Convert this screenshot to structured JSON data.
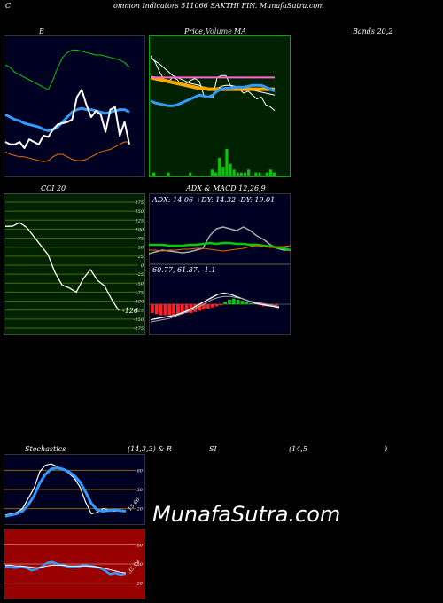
{
  "header": {
    "left": "C",
    "title": "ommon  Indicators 511066  SAKTHI FIN. MunafaSutra.com"
  },
  "panel_labels": {
    "bollinger_left": "B",
    "price_ma": "Price,",
    "price_ma_overlap": "Volume",
    "ma": "MA",
    "bands": "Bands 20,2",
    "cci": "CCI 20",
    "adx_macd": "ADX  & MACD 12,26,9",
    "stoch": "Stochastics",
    "stoch_params": "(14,3,3) & R",
    "si": "SI",
    "rsi_params": "(14,5",
    "rsi_close": ")"
  },
  "brand": "MunafaSutra.com",
  "colors": {
    "panel_navy": "#000022",
    "panel_green": "#002200",
    "panel_olive": "#002200",
    "panel_red": "#990000",
    "white": "#ffffff",
    "green": "#00cc00",
    "orange": "#e07000",
    "blue": "#3399ff",
    "yellow": "#ffaa00",
    "pink": "#ff66cc"
  },
  "chart_data": [
    {
      "id": "bollinger",
      "type": "line",
      "title": "Bollinger Bands 20,2",
      "ylim": [
        0,
        100
      ],
      "series": [
        {
          "name": "upper",
          "color": "#00cc00",
          "values": [
            82,
            80,
            76,
            74,
            72,
            70,
            68,
            66,
            64,
            62,
            70,
            80,
            88,
            92,
            94,
            94,
            93,
            92,
            91,
            90,
            90,
            89,
            88,
            87,
            86,
            84,
            80
          ]
        },
        {
          "name": "middle",
          "color": "#3399ff",
          "values": [
            42,
            40,
            38,
            37,
            35,
            34,
            33,
            32,
            30,
            29,
            30,
            32,
            36,
            40,
            44,
            46,
            47,
            46,
            46,
            45,
            44,
            43,
            44,
            45,
            46,
            46,
            44
          ]
        },
        {
          "name": "lower",
          "color": "#e07000",
          "values": [
            12,
            10,
            9,
            8,
            8,
            7,
            6,
            5,
            4,
            5,
            8,
            10,
            10,
            8,
            6,
            5,
            5,
            6,
            8,
            10,
            12,
            13,
            14,
            16,
            18,
            20,
            20
          ]
        },
        {
          "name": "price",
          "color": "#ffffff",
          "values": [
            20,
            18,
            18,
            20,
            15,
            22,
            20,
            18,
            25,
            24,
            30,
            34,
            35,
            36,
            38,
            56,
            62,
            50,
            40,
            45,
            42,
            28,
            46,
            48,
            25,
            36,
            18
          ]
        }
      ]
    },
    {
      "id": "price_ma",
      "type": "line",
      "title": "Price, Volume MA",
      "ylim": [
        0,
        100
      ],
      "series": [
        {
          "name": "price",
          "color": "#ffffff",
          "values": [
            88,
            82,
            72,
            64,
            62,
            66,
            64,
            58,
            60,
            63,
            65,
            62,
            48,
            46,
            45,
            66,
            68,
            68,
            58,
            53,
            54,
            50,
            52,
            48,
            44,
            46,
            38,
            36,
            32
          ]
        },
        {
          "name": "ma_fast",
          "color": "#ffffff",
          "values": [
            86,
            83,
            80,
            76,
            72,
            68,
            66,
            64,
            62,
            60,
            59,
            58,
            56,
            54,
            53,
            55,
            57,
            58,
            58,
            57,
            56,
            55,
            54,
            53,
            52,
            51,
            50,
            49,
            48
          ]
        },
        {
          "name": "ma_slow",
          "color": "#ffaa00",
          "values": [
            66,
            65,
            64,
            63,
            62,
            61,
            60,
            59,
            58,
            57,
            56,
            55,
            55,
            54,
            54,
            54,
            54,
            54,
            54,
            54,
            54,
            54,
            54,
            54,
            54,
            54,
            54,
            54,
            54
          ]
        },
        {
          "name": "ma_blue",
          "color": "#3399ff",
          "values": [
            42,
            40,
            39,
            38,
            37,
            37,
            38,
            40,
            42,
            44,
            46,
            48,
            47,
            46,
            48,
            52,
            54,
            55,
            55,
            56,
            56,
            56,
            57,
            58,
            58,
            58,
            56,
            54,
            52
          ]
        },
        {
          "name": "ma_pink",
          "color": "#ff66cc",
          "values": [
            66,
            66,
            66,
            66,
            66,
            66,
            66,
            66,
            66,
            66,
            66,
            66,
            66,
            66,
            66,
            66,
            66,
            66,
            66,
            66,
            66,
            66,
            66,
            66,
            66,
            66,
            66,
            66,
            66
          ]
        }
      ],
      "volume": [
        1,
        0,
        0,
        0,
        1,
        0,
        0,
        0,
        0,
        0,
        1,
        0,
        0,
        0,
        0,
        0,
        2,
        1,
        6,
        3,
        9,
        4,
        2,
        1,
        1,
        1,
        2,
        0,
        1,
        1,
        0,
        1,
        2,
        1
      ]
    },
    {
      "id": "cci",
      "type": "line",
      "title": "CCI 20",
      "ylim": [
        -175,
        175
      ],
      "yticks": [
        175,
        150,
        125,
        100,
        75,
        50,
        25,
        0,
        -25,
        -50,
        -75,
        -100,
        -125,
        -150,
        -175
      ],
      "values": [
        108,
        108,
        118,
        105,
        80,
        55,
        30,
        -20,
        -55,
        -63,
        -75,
        -38,
        -12,
        -42,
        -58,
        -95,
        -126
      ],
      "last_label": "-126"
    },
    {
      "id": "adx",
      "type": "line",
      "title": "ADX: 14.06  +DY: 14.32  -DY: 19.01",
      "ylim": [
        0,
        60
      ],
      "series": [
        {
          "name": "adx",
          "color": "#aaaaaa",
          "values": [
            10,
            12,
            14,
            13,
            12,
            11,
            12,
            14,
            16,
            30,
            38,
            40,
            38,
            36,
            40,
            36,
            30,
            26,
            20,
            16,
            14,
            14
          ]
        },
        {
          "name": "+DI",
          "color": "#00cc00",
          "values": [
            20,
            20,
            20,
            19,
            19,
            19,
            20,
            20,
            21,
            22,
            21,
            22,
            22,
            21,
            21,
            20,
            20,
            19,
            18,
            17,
            16,
            14
          ]
        },
        {
          "name": "-DI",
          "color": "#e07000",
          "values": [
            14,
            14,
            13,
            14,
            14,
            15,
            15,
            16,
            16,
            15,
            14,
            13,
            14,
            15,
            16,
            18,
            19,
            18,
            17,
            18,
            18,
            19
          ]
        }
      ]
    },
    {
      "id": "macd",
      "type": "bar",
      "title": "60.77,  61.87,  -1.1",
      "ylim": [
        -20,
        20
      ],
      "histogram": [
        -8,
        -9,
        -10,
        -10,
        -10,
        -10,
        -9,
        -9,
        -8,
        -8,
        -7,
        -6,
        -5,
        -4,
        -3,
        -2,
        -1,
        2,
        4,
        5,
        4,
        3,
        2,
        1,
        0,
        -1,
        -2,
        -2,
        -1,
        -1
      ],
      "macd": [
        -14,
        -13,
        -12,
        -11,
        -10,
        -8,
        -6,
        -3,
        0,
        3,
        6,
        9,
        10,
        9,
        7,
        5,
        3,
        1,
        0,
        -1,
        -2,
        -3
      ],
      "signal": [
        -16,
        -15,
        -14,
        -13,
        -11,
        -9,
        -7,
        -5,
        -2,
        1,
        4,
        6,
        7,
        7,
        6,
        5,
        3,
        2,
        1,
        0,
        -1,
        -2
      ]
    },
    {
      "id": "stochastics",
      "type": "line",
      "title": "Stochastics (14,3,3)",
      "ylim": [
        0,
        100
      ],
      "yticks": [
        80,
        50,
        20
      ],
      "series": [
        {
          "name": "%K",
          "color": "#ffffff",
          "values": [
            10,
            12,
            14,
            20,
            36,
            52,
            78,
            88,
            90,
            86,
            82,
            76,
            68,
            54,
            30,
            12,
            14,
            20,
            18,
            16,
            18,
            16
          ]
        },
        {
          "name": "%D",
          "color": "#3399ff",
          "values": [
            8,
            10,
            12,
            16,
            26,
            40,
            60,
            74,
            82,
            84,
            82,
            78,
            72,
            62,
            46,
            28,
            18,
            16,
            17,
            18,
            17,
            16
          ]
        }
      ],
      "last_label": "15.66"
    },
    {
      "id": "rsi",
      "type": "line",
      "title": "RSI (14,5)",
      "ylim": [
        0,
        100
      ],
      "yticks": [
        80,
        50,
        20
      ],
      "series": [
        {
          "name": "rsi",
          "color": "#3399ff",
          "values": [
            46,
            45,
            44,
            46,
            44,
            40,
            42,
            46,
            52,
            53,
            50,
            48,
            46,
            45,
            46,
            48,
            47,
            46,
            44,
            40,
            34,
            36,
            33,
            35
          ]
        },
        {
          "name": "signal",
          "color": "#ffffff",
          "values": [
            48,
            48,
            47,
            47,
            46,
            45,
            44,
            45,
            47,
            48,
            48,
            48,
            47,
            47,
            47,
            47,
            47,
            46,
            45,
            43,
            41,
            39,
            37,
            36
          ]
        }
      ],
      "last_label": "35.99"
    }
  ]
}
